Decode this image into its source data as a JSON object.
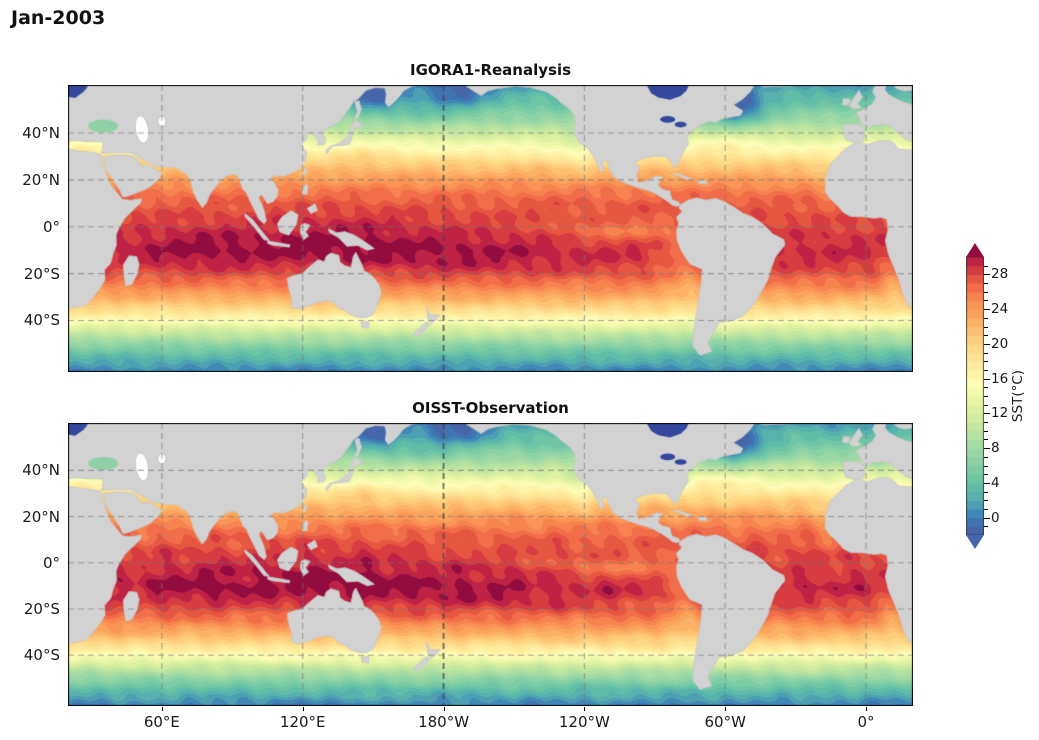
{
  "page_title": "Jan-2003",
  "panels": [
    {
      "title": "IGORA1-Reanalysis"
    },
    {
      "title": "OISST-Observation"
    }
  ],
  "axes": {
    "y_tick_labels": [
      "40°N",
      "20°N",
      "0°",
      "20°S",
      "40°S"
    ],
    "y_tick_lats": [
      40,
      20,
      0,
      -20,
      -40
    ],
    "x_tick_labels": [
      "60°E",
      "120°E",
      "180°W",
      "120°W",
      "60°W",
      "0°"
    ],
    "x_tick_lons": [
      60,
      120,
      180,
      240,
      300,
      360
    ],
    "lat_range": [
      -62,
      60.5
    ],
    "lon_range": [
      20,
      380
    ]
  },
  "colorbar": {
    "label": "SST(°C)",
    "tick_values": [
      0,
      4,
      8,
      12,
      16,
      20,
      24,
      28
    ],
    "minor_step": 1,
    "value_range": [
      -2,
      30
    ],
    "extend": "both"
  },
  "colors": {
    "background": "#ffffff",
    "land": "#d2d2d2",
    "coastline": "#c6c6c6",
    "gridline": "#8c8c8c",
    "dateline_gridline": "#55555f",
    "under": "#4566ac",
    "over": "#930c3f",
    "caspian_sea": "#ffffff",
    "black_sea": "#8fd0a6",
    "cold_lakes": "#32479d",
    "text": "#111111"
  },
  "chart_data": {
    "type": "heatmap",
    "title": "Jan-2003",
    "panels": [
      "IGORA1-Reanalysis",
      "OISST-Observation"
    ],
    "variable": "SST(°C)",
    "lat_range": [
      -62,
      60.5
    ],
    "lon_range": [
      20,
      380
    ],
    "level_step": 1,
    "colorbar_ticks": [
      0,
      4,
      8,
      12,
      16,
      20,
      24,
      28
    ],
    "colormap_stops": [
      [
        -2,
        "#4a5ea3"
      ],
      [
        0,
        "#3b7cb8"
      ],
      [
        2,
        "#52acb0"
      ],
      [
        4,
        "#66c2a5"
      ],
      [
        6,
        "#84cfa5"
      ],
      [
        8,
        "#a0daa4"
      ],
      [
        10,
        "#bce4a0"
      ],
      [
        12,
        "#d9efa0"
      ],
      [
        14,
        "#eff8a8"
      ],
      [
        15.5,
        "#fdfdb9"
      ],
      [
        17,
        "#fef0a2"
      ],
      [
        19,
        "#fedf8e"
      ],
      [
        21,
        "#fdc877"
      ],
      [
        23,
        "#fcab60"
      ],
      [
        25,
        "#f98e52"
      ],
      [
        26.5,
        "#f26d4a"
      ],
      [
        28,
        "#e04c3d"
      ],
      [
        29,
        "#cb2b44"
      ],
      [
        30,
        "#b01b46"
      ]
    ],
    "zonal_mean_sst": {
      "lats": [
        60.5,
        55,
        50,
        45,
        40,
        35,
        30,
        25,
        20,
        15,
        10,
        5,
        0,
        -5,
        -10,
        -15,
        -20,
        -25,
        -30,
        -35,
        -40,
        -45,
        -50,
        -55,
        -62
      ],
      "values": [
        1.5,
        3.5,
        5.5,
        8,
        11,
        14.5,
        18,
        21.5,
        24,
        26,
        27.2,
        27.8,
        28.2,
        28.8,
        29.2,
        28.8,
        27.6,
        25.6,
        23,
        19.5,
        15.5,
        11,
        7,
        3.5,
        0
      ]
    },
    "features": [
      {
        "name": "indo-pacific-warm-pool",
        "lon": 135,
        "lat": -6,
        "amp": 1.6,
        "slon": 38,
        "slat": 13
      },
      {
        "name": "indian-ocean-warm",
        "lon": 75,
        "lat": -9,
        "amp": 1.2,
        "slon": 26,
        "slat": 11
      },
      {
        "name": "spcz-warm",
        "lon": 195,
        "lat": -14,
        "amp": 0.9,
        "slon": 35,
        "slat": 11
      },
      {
        "name": "pacific-cold-tongue",
        "lon": 255,
        "lat": -2,
        "amp": -2.4,
        "slon": 28,
        "slat": 5
      },
      {
        "name": "peru-coastal-cool",
        "lon": 277,
        "lat": -12,
        "amp": -1.5,
        "slon": 9,
        "slat": 13
      },
      {
        "name": "humboldt-current",
        "lon": 284,
        "lat": -24,
        "amp": -2.0,
        "slon": 7,
        "slat": 13
      },
      {
        "name": "sea-of-okhotsk-cold",
        "lon": 150,
        "lat": 55.5,
        "amp": -5.0,
        "slon": 10,
        "slat": 6
      },
      {
        "name": "bering-sea-cold",
        "lon": 186,
        "lat": 57.5,
        "amp": -4.0,
        "slon": 14,
        "slat": 6
      },
      {
        "name": "subarctic-gyre-cool",
        "lon": 170,
        "lat": 50,
        "amp": -2.0,
        "slon": 25,
        "slat": 7
      },
      {
        "name": "labrador-cold",
        "lon": 303,
        "lat": 51,
        "amp": -8.0,
        "slon": 13,
        "slat": 8
      },
      {
        "name": "gulf-stream-warm",
        "lon": 298,
        "lat": 36,
        "amp": 2.0,
        "slon": 14,
        "slat": 5
      },
      {
        "name": "kuroshio-warm",
        "lon": 146,
        "lat": 31,
        "amp": 1.5,
        "slon": 13,
        "slat": 6
      },
      {
        "name": "california-current",
        "lon": 237,
        "lat": 30,
        "amp": -1.8,
        "slon": 9,
        "slat": 9
      },
      {
        "name": "canary-current",
        "lon": 344,
        "lat": 20,
        "amp": -1.5,
        "slon": 6,
        "slat": 9
      },
      {
        "name": "benguela-current",
        "lon": 372,
        "lat": -22,
        "amp": -2.5,
        "slon": 6,
        "slat": 11
      },
      {
        "name": "baltic-cold",
        "lon": 24,
        "lat": 57,
        "amp": -4.0,
        "slon": 7,
        "slat": 5
      },
      {
        "name": "east-med-warm",
        "lon": 28,
        "lat": 33.5,
        "amp": 2.5,
        "slon": 7,
        "slat": 3
      }
    ],
    "gridlines": {
      "lats": [
        40,
        20,
        0,
        -20,
        -40
      ],
      "lons": [
        60,
        120,
        180,
        240,
        300,
        360
      ],
      "style": "dashed"
    },
    "legend_position": "right"
  }
}
